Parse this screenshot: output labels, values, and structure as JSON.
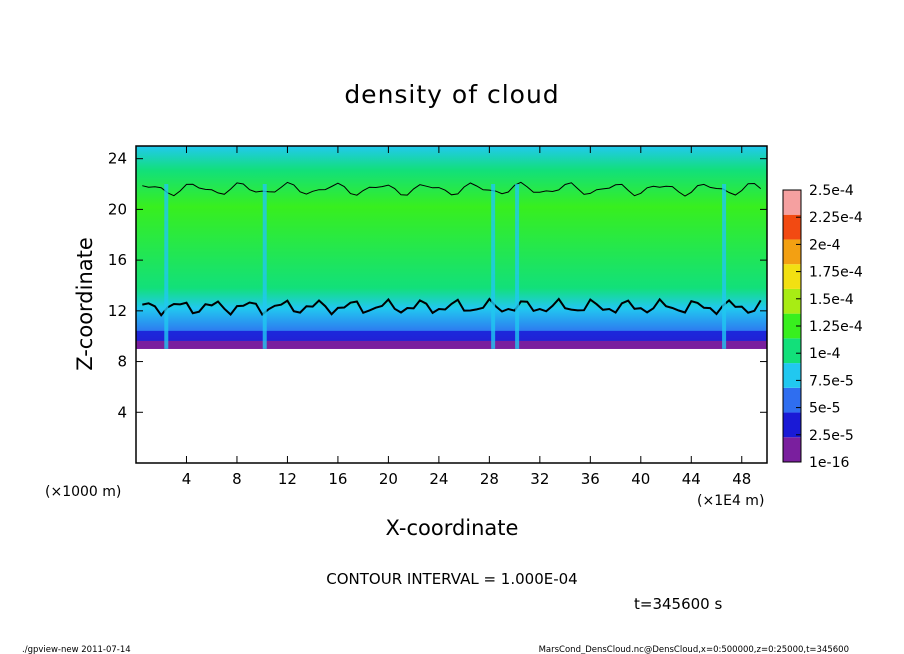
{
  "chart_data": {
    "type": "heatmap",
    "title": "density of cloud",
    "xlabel": "X-coordinate",
    "ylabel": "Z-coordinate",
    "x_unit_left": "(×1000 m)",
    "x_unit_right": "(×1E4 m)",
    "xlim": [
      0,
      50
    ],
    "ylim": [
      0,
      25
    ],
    "x_ticks": [
      "4",
      "8",
      "12",
      "16",
      "20",
      "24",
      "28",
      "32",
      "36",
      "40",
      "44",
      "48"
    ],
    "y_ticks": [
      "4",
      "8",
      "12",
      "16",
      "20",
      "24"
    ],
    "cloud_base_z": 9,
    "contour_level": 0.0001,
    "colorbar": {
      "labels": [
        "1e-16",
        "2.5e-5",
        "5e-5",
        "7.5e-5",
        "1e-4",
        "1.25e-4",
        "1.5e-4",
        "1.75e-4",
        "2e-4",
        "2.25e-4",
        "2.5e-4"
      ],
      "colors": [
        "#7a1f9e",
        "#1a1ad6",
        "#2f6ef0",
        "#21c8f0",
        "#12e07a",
        "#38ef1e",
        "#a8ec14",
        "#f2e012",
        "#f3a012",
        "#f24a12",
        "#f5a0a0"
      ]
    }
  },
  "annotations": {
    "contour_interval": "CONTOUR INTERVAL = 1.000E-04",
    "time": "t=345600 s",
    "footer_left": "./gpview-new   2011-07-14",
    "footer_right": "MarsCond_DensCloud.nc@DensCloud,x=0:500000,z=0:25000,t=345600"
  }
}
